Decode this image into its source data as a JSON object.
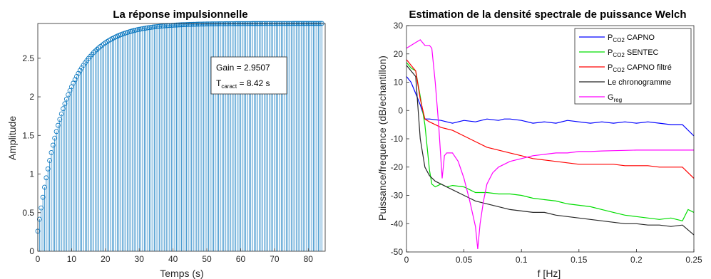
{
  "chart_data": [
    {
      "type": "stem",
      "title": "La réponse impulsionnelle",
      "xlabel": "Temps (s)",
      "ylabel": "Amplitude",
      "xlim": [
        0,
        85
      ],
      "ylim": [
        0,
        2.95
      ],
      "xticks": [
        "0",
        "10",
        "20",
        "30",
        "40",
        "50",
        "60",
        "70",
        "80"
      ],
      "yticks": [
        "0",
        "0.5",
        "1",
        "1.5",
        "2",
        "2.5"
      ],
      "x_step": 0.5,
      "x_max": 84,
      "response": {
        "gain": 2.9507,
        "tau": 8.42,
        "y0": 0.26
      },
      "color": "#0072BD",
      "annotation": {
        "gain_label": "Gain = 2.9507",
        "tau_label_main": "T",
        "tau_label_sub": "caract",
        "tau_label_rest": " = 8.42 s"
      }
    },
    {
      "type": "line",
      "title": "Estimation de la densité spectrale de puissance Welch",
      "xlabel": "f [Hz]",
      "ylabel": "Puissance/frequence (dB/echantillon)",
      "xlim": [
        0,
        0.25
      ],
      "ylim": [
        -50,
        30
      ],
      "xticks": [
        "0",
        "0.05",
        "0.1",
        "0.15",
        "0.2",
        "0.25"
      ],
      "yticks": [
        "30",
        "20",
        "10",
        "0",
        "-10",
        "-20",
        "-30",
        "-40",
        "-50"
      ],
      "legend_position": "top-right",
      "series": [
        {
          "name_main": "P",
          "name_sub": "CO2",
          "name_rest": " CAPNO",
          "color": "#0000FF",
          "points": [
            [
              0,
              12
            ],
            [
              0.004,
              10
            ],
            [
              0.008,
              6
            ],
            [
              0.012,
              2
            ],
            [
              0.016,
              -3
            ],
            [
              0.02,
              -3
            ],
            [
              0.03,
              -3.5
            ],
            [
              0.035,
              -4
            ],
            [
              0.04,
              -4.5
            ],
            [
              0.05,
              -3.5
            ],
            [
              0.06,
              -4
            ],
            [
              0.07,
              -3
            ],
            [
              0.08,
              -3.5
            ],
            [
              0.085,
              -3
            ],
            [
              0.09,
              -3
            ],
            [
              0.1,
              -3.5
            ],
            [
              0.11,
              -4.5
            ],
            [
              0.12,
              -4
            ],
            [
              0.13,
              -4.5
            ],
            [
              0.14,
              -3.5
            ],
            [
              0.15,
              -4
            ],
            [
              0.16,
              -4.5
            ],
            [
              0.17,
              -4
            ],
            [
              0.18,
              -4.5
            ],
            [
              0.19,
              -4
            ],
            [
              0.2,
              -4.5
            ],
            [
              0.21,
              -4
            ],
            [
              0.22,
              -4.5
            ],
            [
              0.23,
              -5
            ],
            [
              0.24,
              -5
            ],
            [
              0.25,
              -9
            ]
          ]
        },
        {
          "name_main": "P",
          "name_sub": "CO2",
          "name_rest": " SENTEC",
          "color": "#00DD00",
          "points": [
            [
              0,
              17
            ],
            [
              0.004,
              15
            ],
            [
              0.008,
              14
            ],
            [
              0.012,
              5
            ],
            [
              0.016,
              -5
            ],
            [
              0.02,
              -21
            ],
            [
              0.022,
              -26
            ],
            [
              0.025,
              -27
            ],
            [
              0.03,
              -26
            ],
            [
              0.035,
              -27
            ],
            [
              0.04,
              -26.5
            ],
            [
              0.05,
              -27
            ],
            [
              0.055,
              -28
            ],
            [
              0.06,
              -29
            ],
            [
              0.07,
              -29
            ],
            [
              0.08,
              -29.5
            ],
            [
              0.09,
              -29.5
            ],
            [
              0.1,
              -30
            ],
            [
              0.11,
              -31
            ],
            [
              0.12,
              -31.5
            ],
            [
              0.13,
              -32
            ],
            [
              0.14,
              -33
            ],
            [
              0.15,
              -33.5
            ],
            [
              0.16,
              -34
            ],
            [
              0.17,
              -35
            ],
            [
              0.18,
              -36
            ],
            [
              0.19,
              -37
            ],
            [
              0.2,
              -37.5
            ],
            [
              0.21,
              -38
            ],
            [
              0.22,
              -38.5
            ],
            [
              0.23,
              -38
            ],
            [
              0.24,
              -39
            ],
            [
              0.245,
              -35
            ],
            [
              0.25,
              -36
            ]
          ]
        },
        {
          "name_main": "P",
          "name_sub": "CO2",
          "name_rest": " CAPNO filtré",
          "color": "#FF0000",
          "points": [
            [
              0,
              18
            ],
            [
              0.004,
              16
            ],
            [
              0.008,
              14
            ],
            [
              0.012,
              4
            ],
            [
              0.016,
              -3
            ],
            [
              0.02,
              -4
            ],
            [
              0.025,
              -5
            ],
            [
              0.03,
              -6
            ],
            [
              0.04,
              -7
            ],
            [
              0.05,
              -9
            ],
            [
              0.06,
              -11
            ],
            [
              0.07,
              -13
            ],
            [
              0.08,
              -14
            ],
            [
              0.09,
              -15
            ],
            [
              0.1,
              -16
            ],
            [
              0.11,
              -17
            ],
            [
              0.12,
              -17.5
            ],
            [
              0.13,
              -18
            ],
            [
              0.14,
              -18.5
            ],
            [
              0.15,
              -19
            ],
            [
              0.16,
              -19
            ],
            [
              0.17,
              -19
            ],
            [
              0.18,
              -19
            ],
            [
              0.19,
              -19.5
            ],
            [
              0.2,
              -19.5
            ],
            [
              0.21,
              -19.5
            ],
            [
              0.22,
              -20
            ],
            [
              0.23,
              -20
            ],
            [
              0.24,
              -20
            ],
            [
              0.25,
              -24
            ]
          ]
        },
        {
          "name_main": "Le chronogramme",
          "name_sub": "",
          "name_rest": "",
          "color": "#262626",
          "points": [
            [
              0,
              16
            ],
            [
              0.004,
              14
            ],
            [
              0.008,
              12
            ],
            [
              0.012,
              -10
            ],
            [
              0.016,
              -20
            ],
            [
              0.02,
              -23
            ],
            [
              0.025,
              -25
            ],
            [
              0.03,
              -26
            ],
            [
              0.04,
              -28
            ],
            [
              0.05,
              -30
            ],
            [
              0.06,
              -32
            ],
            [
              0.07,
              -33
            ],
            [
              0.08,
              -34
            ],
            [
              0.09,
              -35
            ],
            [
              0.1,
              -35.5
            ],
            [
              0.11,
              -36
            ],
            [
              0.12,
              -36
            ],
            [
              0.13,
              -37
            ],
            [
              0.14,
              -37.5
            ],
            [
              0.15,
              -38
            ],
            [
              0.16,
              -38.5
            ],
            [
              0.17,
              -39
            ],
            [
              0.18,
              -39.5
            ],
            [
              0.19,
              -40
            ],
            [
              0.2,
              -40
            ],
            [
              0.21,
              -40.5
            ],
            [
              0.22,
              -40.5
            ],
            [
              0.23,
              -41
            ],
            [
              0.24,
              -40.5
            ],
            [
              0.25,
              -44
            ]
          ]
        },
        {
          "name_main": "G",
          "name_sub": "reg",
          "name_rest": "",
          "color": "#FF00FF",
          "points": [
            [
              0,
              22
            ],
            [
              0.004,
              23
            ],
            [
              0.008,
              24
            ],
            [
              0.012,
              25
            ],
            [
              0.016,
              23
            ],
            [
              0.02,
              23
            ],
            [
              0.022,
              22
            ],
            [
              0.025,
              10
            ],
            [
              0.028,
              -5
            ],
            [
              0.031,
              -24
            ],
            [
              0.033,
              -16
            ],
            [
              0.035,
              -15
            ],
            [
              0.04,
              -15
            ],
            [
              0.045,
              -18
            ],
            [
              0.05,
              -24
            ],
            [
              0.055,
              -32
            ],
            [
              0.06,
              -41
            ],
            [
              0.062,
              -49
            ],
            [
              0.064,
              -40
            ],
            [
              0.067,
              -32
            ],
            [
              0.07,
              -26
            ],
            [
              0.075,
              -22
            ],
            [
              0.08,
              -20
            ],
            [
              0.09,
              -18
            ],
            [
              0.1,
              -17
            ],
            [
              0.11,
              -16
            ],
            [
              0.12,
              -15.5
            ],
            [
              0.13,
              -15
            ],
            [
              0.14,
              -15
            ],
            [
              0.15,
              -14.5
            ],
            [
              0.16,
              -14.5
            ],
            [
              0.17,
              -14.3
            ],
            [
              0.18,
              -14.2
            ],
            [
              0.19,
              -14.1
            ],
            [
              0.2,
              -14
            ],
            [
              0.21,
              -14
            ],
            [
              0.22,
              -14
            ],
            [
              0.23,
              -14
            ],
            [
              0.24,
              -14
            ],
            [
              0.25,
              -14
            ]
          ]
        }
      ]
    }
  ]
}
